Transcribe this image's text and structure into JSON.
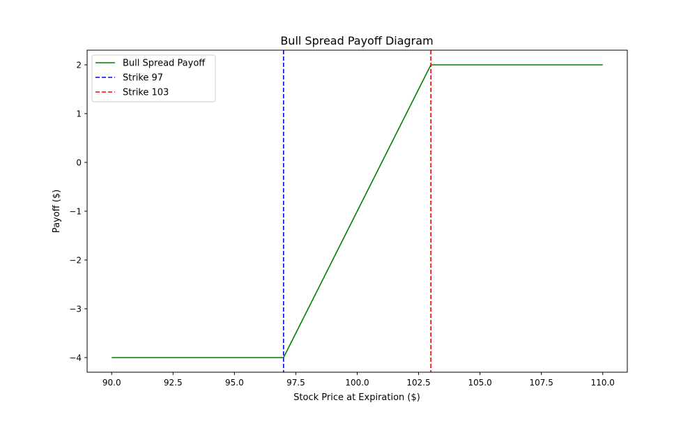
{
  "chart_data": {
    "type": "line",
    "title": "Bull Spread Payoff Diagram",
    "xlabel": "Stock Price at Expiration ($)",
    "ylabel": "Payoff ($)",
    "xlim": [
      89.0,
      111.0
    ],
    "ylim": [
      -4.3,
      2.3
    ],
    "xticks": [
      90.0,
      92.5,
      95.0,
      97.5,
      100.0,
      102.5,
      105.0,
      107.5,
      110.0
    ],
    "xtick_labels": [
      "90.0",
      "92.5",
      "95.0",
      "97.5",
      "100.0",
      "102.5",
      "105.0",
      "107.5",
      "110.0"
    ],
    "yticks": [
      -4,
      -3,
      -2,
      -1,
      0,
      1,
      2
    ],
    "ytick_labels": [
      "−4",
      "−3",
      "−2",
      "−1",
      "0",
      "1",
      "2"
    ],
    "grid": false,
    "legend_position": "top-left",
    "series": [
      {
        "name": "Bull Spread Payoff",
        "style": "solid",
        "color": "#008000",
        "x": [
          90,
          97,
          103,
          110
        ],
        "y": [
          -4,
          -4,
          2,
          2
        ]
      }
    ],
    "vlines": [
      {
        "name": "Strike 97",
        "x": 97,
        "style": "dashed",
        "color": "#0000ff"
      },
      {
        "name": "Strike 103",
        "x": 103,
        "style": "dashed",
        "color": "#ff0000"
      }
    ]
  }
}
